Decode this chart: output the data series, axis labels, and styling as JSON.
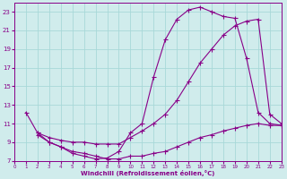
{
  "xlabel": "Windchill (Refroidissement éolien,°C)",
  "bg_color": "#d0ecec",
  "line_color": "#880088",
  "grid_color": "#a8d8d8",
  "xmin": 0,
  "xmax": 23,
  "ymin": 7,
  "ymax": 24,
  "yticks": [
    7,
    9,
    11,
    13,
    15,
    17,
    19,
    21,
    23
  ],
  "xticks": [
    0,
    1,
    2,
    3,
    4,
    5,
    6,
    7,
    8,
    9,
    10,
    11,
    12,
    13,
    14,
    15,
    16,
    17,
    18,
    19,
    20,
    21,
    22,
    23
  ],
  "line1_x": [
    1,
    2,
    3,
    4,
    5,
    6,
    7,
    8,
    9,
    10,
    11,
    12,
    13,
    14,
    15,
    16,
    17,
    18,
    19,
    20,
    21,
    22,
    23
  ],
  "line1_y": [
    12.2,
    10.0,
    9.0,
    8.5,
    7.8,
    7.5,
    7.2,
    7.3,
    8.0,
    10.0,
    11.0,
    16.0,
    20.0,
    22.2,
    23.2,
    23.5,
    23.0,
    22.5,
    22.3,
    18.0,
    12.2,
    11.0,
    10.8
  ],
  "line2_x": [
    2,
    3,
    4,
    5,
    6,
    7,
    8,
    9,
    10,
    11,
    12,
    13,
    14,
    15,
    16,
    17,
    18,
    19,
    20,
    21,
    22,
    23
  ],
  "line2_y": [
    10.0,
    9.5,
    9.2,
    9.0,
    9.0,
    8.8,
    8.8,
    8.8,
    9.5,
    10.2,
    11.0,
    12.0,
    13.5,
    15.5,
    17.5,
    19.0,
    20.5,
    21.5,
    22.0,
    22.2,
    12.0,
    11.0
  ],
  "line3_x": [
    2,
    3,
    4,
    5,
    6,
    7,
    8,
    9,
    10,
    11,
    12,
    13,
    14,
    15,
    16,
    17,
    18,
    19,
    20,
    21,
    22,
    23
  ],
  "line3_y": [
    9.8,
    9.0,
    8.5,
    8.0,
    7.8,
    7.5,
    7.2,
    7.2,
    7.5,
    7.5,
    7.8,
    8.0,
    8.5,
    9.0,
    9.5,
    9.8,
    10.2,
    10.5,
    10.8,
    11.0,
    10.8,
    10.8
  ]
}
